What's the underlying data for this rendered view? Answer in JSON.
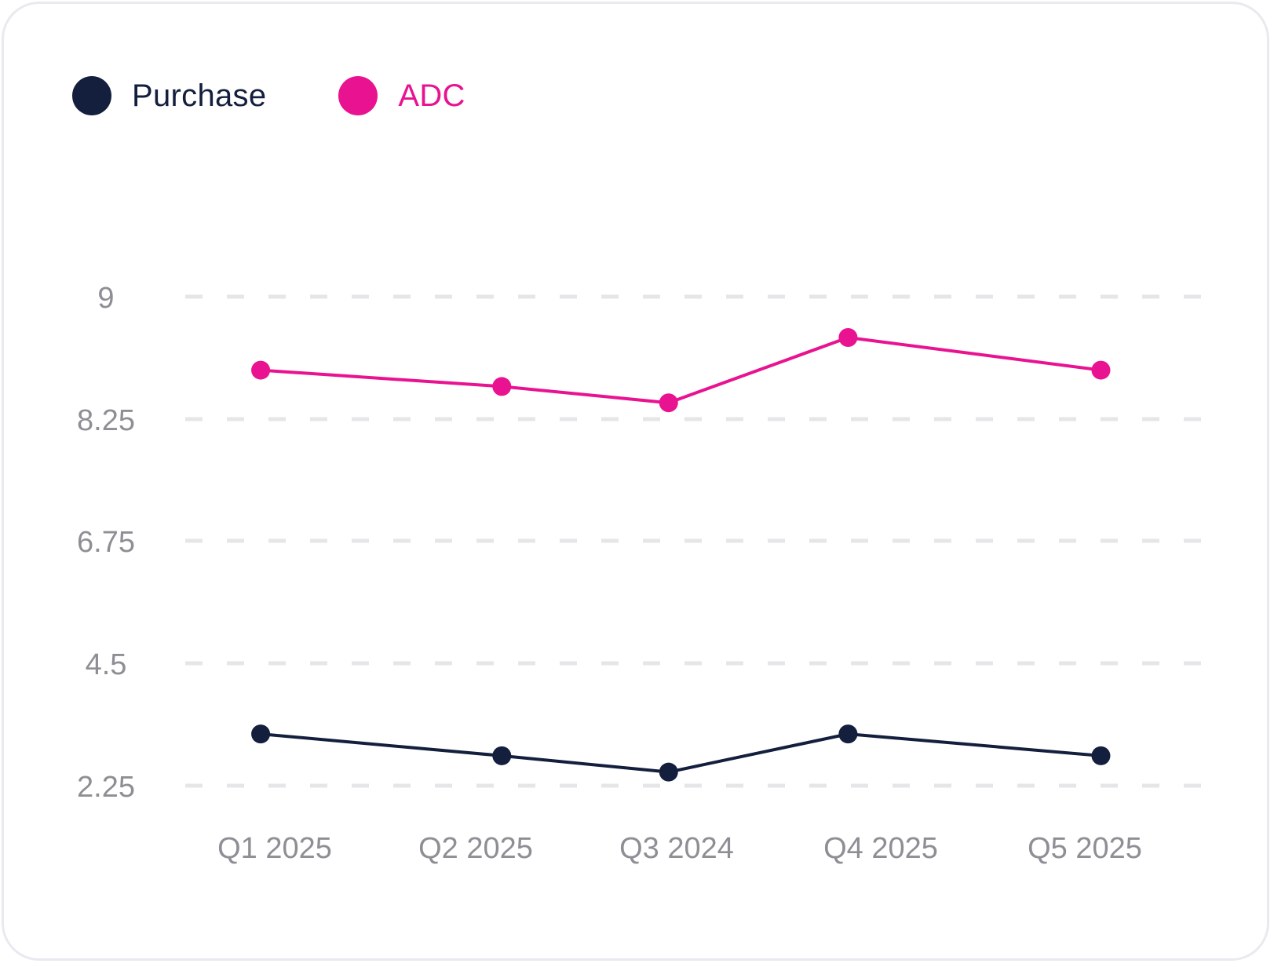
{
  "colors": {
    "purchase": "#131f3c",
    "adc": "#e91290",
    "grid": "#e6e6e8",
    "tick": "#8e8e95",
    "border": "#e9e9ef"
  },
  "legend": {
    "items": [
      {
        "label": "Purchase",
        "color": "#131f3c"
      },
      {
        "label": "ADC",
        "color": "#e91290"
      }
    ]
  },
  "chart_data": {
    "type": "line",
    "title": "",
    "xlabel": "",
    "ylabel": "",
    "categories": [
      "Q1 2025",
      "Q2 2025",
      "Q3 2024",
      "Q4 2025",
      "Q5 2025"
    ],
    "yticks": [
      "2.25",
      "4.5",
      "6.75",
      "8.25",
      "9"
    ],
    "grid": true,
    "legend_position": "top-left",
    "series": [
      {
        "name": "Purchase",
        "color": "#131f3c",
        "x": [
          0.93,
          2.13,
          2.96,
          3.84,
          5.08
        ],
        "y": [
          3.2,
          2.8,
          2.5,
          3.2,
          2.8
        ]
      },
      {
        "name": "ADC",
        "color": "#e91290",
        "x": [
          0.93,
          2.13,
          2.96,
          3.84,
          5.08
        ],
        "y": [
          8.55,
          8.45,
          8.35,
          8.75,
          8.55
        ]
      }
    ]
  }
}
